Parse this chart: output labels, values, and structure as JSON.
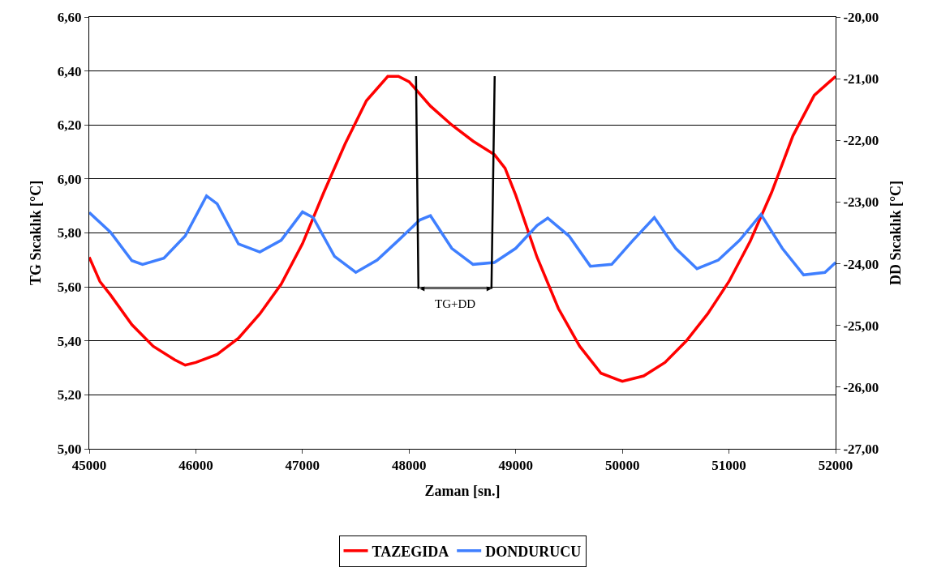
{
  "chart_data": {
    "type": "line",
    "xlabel": "Zaman [sn.]",
    "ylabel": "TG Sıcaklık [°C]",
    "y2label": "DD Sıcaklık [°C]",
    "series": [
      {
        "name": "TAZEGIDA",
        "color": "#ff0000",
        "x": [
          45000,
          45100,
          45200,
          45400,
          45600,
          45800,
          45900,
          46000,
          46200,
          46400,
          46600,
          46800,
          47000,
          47200,
          47400,
          47600,
          47800,
          47900,
          48000,
          48200,
          48400,
          48600,
          48800,
          48900,
          49000,
          49200,
          49400,
          49600,
          49800,
          50000,
          50200,
          50400,
          50600,
          50800,
          51000,
          51200,
          51400,
          51600,
          51800,
          52000
        ],
        "values": [
          5.71,
          5.62,
          5.57,
          5.46,
          5.38,
          5.33,
          5.31,
          5.32,
          5.35,
          5.41,
          5.5,
          5.61,
          5.76,
          5.95,
          6.13,
          6.29,
          6.38,
          6.38,
          6.36,
          6.27,
          6.2,
          6.14,
          6.09,
          6.04,
          5.94,
          5.71,
          5.52,
          5.38,
          5.28,
          5.25,
          5.27,
          5.32,
          5.4,
          5.5,
          5.62,
          5.77,
          5.95,
          6.16,
          6.31,
          6.38
        ]
      },
      {
        "name": "DONDURUCU",
        "color": "#3f7fff",
        "axis": "y2",
        "x": [
          45000,
          45200,
          45400,
          45500,
          45700,
          45900,
          46100,
          46200,
          46400,
          46600,
          46800,
          47000,
          47100,
          47300,
          47500,
          47700,
          47900,
          48100,
          48200,
          48400,
          48600,
          48800,
          49000,
          49200,
          49300,
          49500,
          49700,
          49900,
          50100,
          50300,
          50500,
          50700,
          50900,
          51100,
          51300,
          51500,
          51700,
          51900,
          52000
        ],
        "values": [
          -23.17,
          -23.49,
          -23.95,
          -24.01,
          -23.91,
          -23.55,
          -22.9,
          -23.03,
          -23.68,
          -23.81,
          -23.62,
          -23.16,
          -23.25,
          -23.88,
          -24.14,
          -23.94,
          -23.62,
          -23.29,
          -23.22,
          -23.75,
          -24.01,
          -23.98,
          -23.75,
          -23.38,
          -23.26,
          -23.55,
          -24.04,
          -24.01,
          -23.62,
          -23.25,
          -23.75,
          -24.08,
          -23.94,
          -23.62,
          -23.2,
          -23.75,
          -24.18,
          -24.14,
          -23.98
        ]
      }
    ],
    "xlim": [
      45000,
      52000
    ],
    "xticks": [
      45000,
      46000,
      47000,
      48000,
      49000,
      50000,
      51000,
      52000
    ],
    "ylim": [
      5.0,
      6.6
    ],
    "yticks": [
      {
        "value": 5.0,
        "label": "5,00"
      },
      {
        "value": 5.2,
        "label": "5,20"
      },
      {
        "value": 5.4,
        "label": "5,40"
      },
      {
        "value": 5.6,
        "label": "5,60"
      },
      {
        "value": 5.8,
        "label": "5,80"
      },
      {
        "value": 6.0,
        "label": "6,00"
      },
      {
        "value": 6.2,
        "label": "6,20"
      },
      {
        "value": 6.4,
        "label": "6,40"
      },
      {
        "value": 6.6,
        "label": "6,60"
      }
    ],
    "y2lim": [
      -27,
      -20
    ],
    "y2ticks": [
      {
        "value": -27,
        "label": "-27,00"
      },
      {
        "value": -26,
        "label": "-26,00"
      },
      {
        "value": -25,
        "label": "-25,00"
      },
      {
        "value": -24,
        "label": "-24,00"
      },
      {
        "value": -23,
        "label": "-23,00"
      },
      {
        "value": -22,
        "label": "-22,00"
      },
      {
        "value": -21,
        "label": "-21,00"
      },
      {
        "value": -20,
        "label": "-20,00"
      }
    ],
    "annotations": [
      "TG+DD"
    ],
    "grid": "y",
    "legend": "bottom",
    "marker": "none",
    "line_style": "solid"
  }
}
